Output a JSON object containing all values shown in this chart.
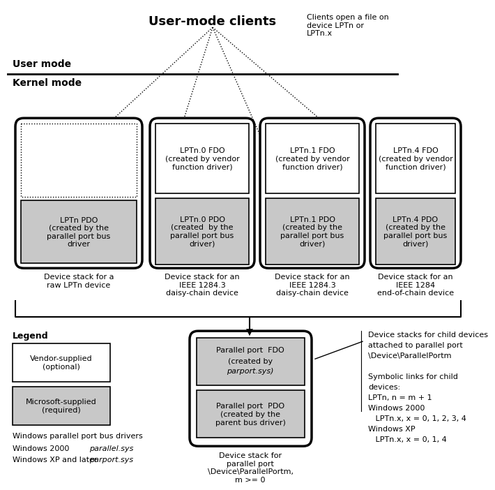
{
  "title": "User-mode clients",
  "user_mode_label": "User mode",
  "kernel_mode_label": "Kernel mode",
  "bg_color": "#ffffff",
  "gray_fill": "#c8c8c8",
  "clients_note": "Clients open a file on\ndevice LPTn or\nLPTn.x",
  "stack_labels": [
    "Device stack for a\nraw LPTn device",
    "Device stack for an\nIEEE 1284.3\ndaisy-chain device",
    "Device stack for an\nIEEE 1284.3\ndaisy-chain device",
    "Device stack for an\nIEEE 1284\nend-of-chain device"
  ],
  "stack_fdo_texts": [
    "",
    "LPTn.0 FDO\n(created by vendor\nfunction driver)",
    "LPTn.1 FDO\n(created by vendor\nfunction driver)",
    "LPTn.4 FDO\n(created by vendor\nfunction driver)"
  ],
  "stack_pdo_texts": [
    "LPTn PDO\n(created by the\nparallel port bus\ndriver",
    "LPTn.0 PDO\n(created  by the\nparallel port bus\ndriver)",
    "LPTn.1 PDO\n(created by the\nparallel port bus\ndriver)",
    "LPTn.4 PDO\n(created by the\nparallel port bus\ndriver)"
  ],
  "port_fdo_line1": "Parallel port  FDO",
  "port_fdo_line2": "(created by",
  "port_fdo_line3": "parport.sys)",
  "port_pdo_text": "Parallel port  PDO\n(created by the\nparent bus driver)",
  "port_label": "Device stack for\nparallel port\n\\Device\\ParallelPortm,\nm >= 0",
  "legend_title": "Legend",
  "vendor_text": "Vendor-supplied\n(optional)",
  "ms_text": "Microsoft-supplied\n(required)",
  "win_bus_drivers": "Windows parallel port bus drivers",
  "win2000": "Windows 2000",
  "win2000_drv": "parallel.sys",
  "winxp": "Windows XP and later",
  "winxp_drv": "parport.sys",
  "right_text_line1": "Device stacks for child devices",
  "right_text_line2": "attached to parallel port",
  "right_text_line3": "\\Device\\ParallelPortm",
  "right_text_line4": "",
  "right_text_line5": "Symbolic links for child",
  "right_text_line6": "devices:",
  "right_text_line7": "LPTn, n = m + 1",
  "right_text_line8": "Windows 2000",
  "right_text_line9": "   LPTn.x, x = 0, 1, 2, 3, 4",
  "right_text_line10": "Windows XP",
  "right_text_line11": "   LPTn.x, x = 0, 1, 4"
}
